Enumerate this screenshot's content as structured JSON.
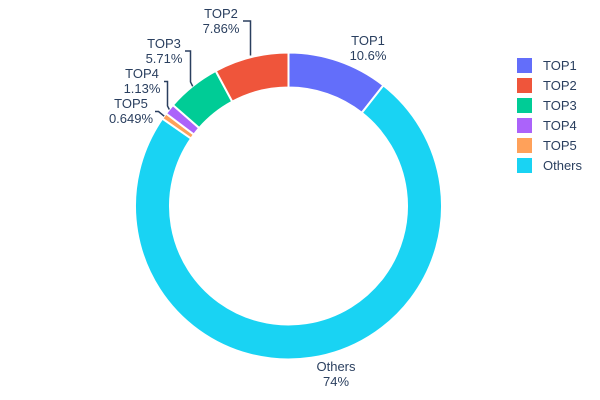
{
  "chart_data": {
    "type": "pie",
    "subtype": "donut",
    "title": "",
    "hole": 0.772,
    "categories": [
      "TOP1",
      "TOP2",
      "TOP3",
      "TOP4",
      "TOP5",
      "Others"
    ],
    "values": [
      10.6,
      7.86,
      5.71,
      1.13,
      0.649,
      74
    ],
    "percent_labels": [
      "10.6%",
      "7.86%",
      "5.71%",
      "1.13%",
      "0.649%",
      "74%"
    ],
    "colors": [
      "#636efa",
      "#ef553b",
      "#00cc96",
      "#ab63fa",
      "#ffa15a",
      "#19d3f3"
    ],
    "clockwise_order": [
      "TOP1",
      "Others",
      "TOP5",
      "TOP4",
      "TOP3",
      "TOP2"
    ],
    "legend_position": "right",
    "legend_entries": [
      "TOP1",
      "TOP2",
      "TOP3",
      "TOP4",
      "TOP5",
      "Others"
    ],
    "text_color": "#2a3f5f",
    "slice_border_color": "#ffffff",
    "background": "#ffffff"
  }
}
